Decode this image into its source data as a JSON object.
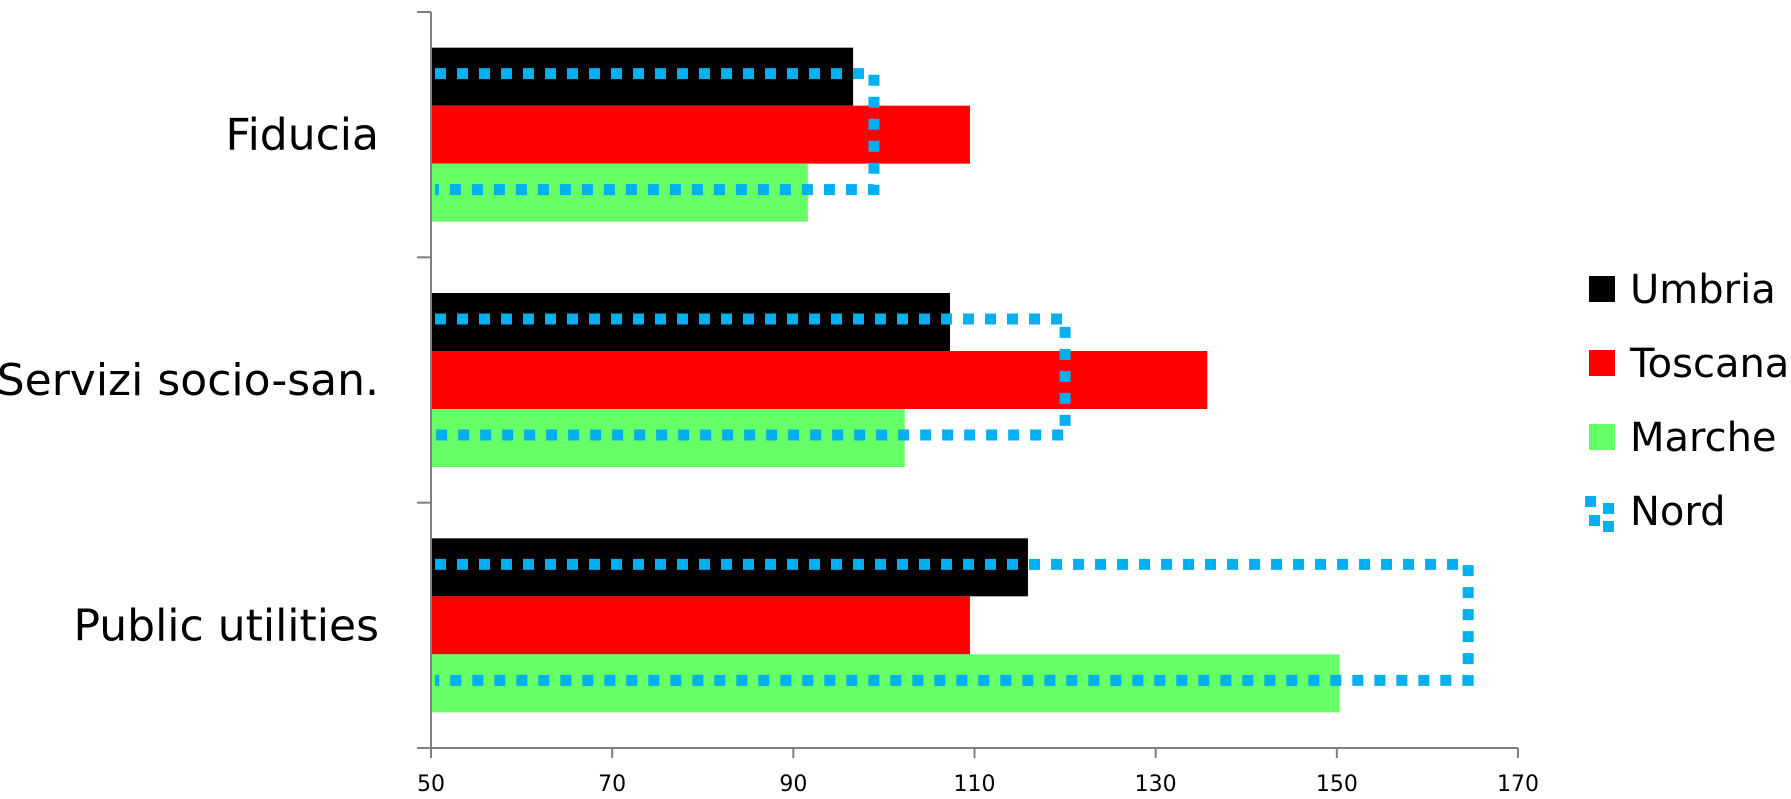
{
  "chart_data": {
    "type": "bar",
    "orientation": "horizontal",
    "categories": [
      "Fiducia",
      "Servizi socio-san.",
      "Public utilities"
    ],
    "series": [
      {
        "name": "Umbria",
        "values": [
          96.6,
          107.3,
          115.9
        ],
        "color": "#000000",
        "style": "solid"
      },
      {
        "name": "Toscana",
        "values": [
          109.5,
          135.7,
          109.5
        ],
        "color": "#ff0000",
        "style": "solid"
      },
      {
        "name": "Marche",
        "values": [
          91.6,
          102.3,
          150.3
        ],
        "color": "#66ff66",
        "style": "solid"
      },
      {
        "name": "Nord",
        "values": [
          98.9,
          120.0,
          164.5
        ],
        "color": "#00b0f0",
        "style": "dotted-outline"
      }
    ],
    "x_ticks": [
      "50",
      "70",
      "90",
      "110",
      "130",
      "150",
      "170"
    ],
    "xlim": [
      50,
      170
    ],
    "grid": false,
    "legend_position": "right"
  }
}
